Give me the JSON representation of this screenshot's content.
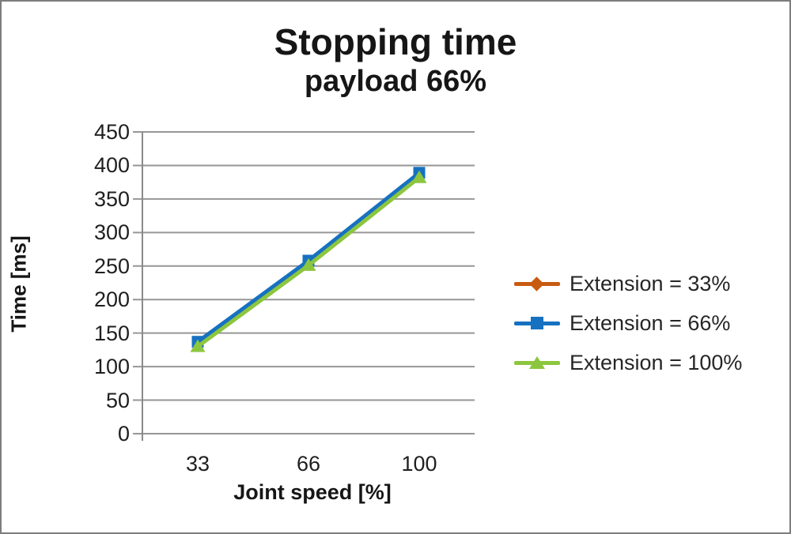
{
  "title": "Stopping time",
  "subtitle": "payload 66%",
  "chart_data": {
    "type": "line",
    "title": "Stopping time",
    "subtitle": "payload 66%",
    "xlabel": "Joint speed [%]",
    "ylabel": "Time [ms]",
    "categories": [
      "33",
      "66",
      "100"
    ],
    "series": [
      {
        "name": "Extension = 33%",
        "marker": "diamond",
        "color": "#C75B12",
        "values": [
          135,
          256,
          386
        ]
      },
      {
        "name": "Extension = 66%",
        "marker": "square",
        "color": "#1771C1",
        "values": [
          137,
          258,
          389
        ]
      },
      {
        "name": "Extension = 100%",
        "marker": "triangle",
        "color": "#8CC63E",
        "values": [
          130,
          251,
          382
        ]
      }
    ],
    "ylim": [
      0,
      450
    ],
    "ytick_step": 50,
    "yticks": [
      450,
      400,
      350,
      300,
      250,
      200,
      150,
      100,
      50,
      0
    ],
    "grid": true,
    "legend_position": "right"
  },
  "style_colors": {
    "gridline": "#969696",
    "axis_line": "#8a8a8a",
    "tick_text": "#1f1f1f",
    "title_text": "#161616"
  }
}
